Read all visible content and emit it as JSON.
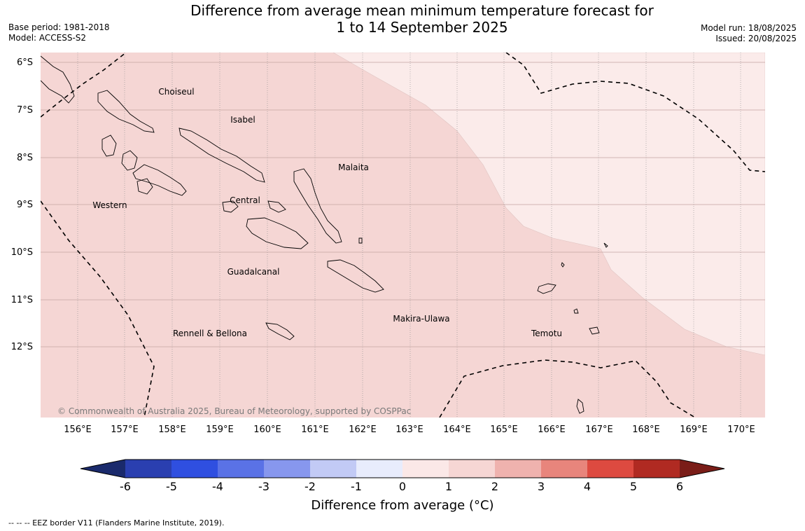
{
  "title_line1": "Difference from average mean minimum temperature forecast for",
  "title_line2": "1 to 14 September 2025",
  "base_period": "Base period: 1981-2018",
  "model": "Model: ACCESS-S2",
  "model_run": "Model run: 18/08/2025",
  "issued": "Issued: 20/08/2025",
  "latitudes": [
    "6°S",
    "7°S",
    "8°S",
    "9°S",
    "10°S",
    "11°S",
    "12°S"
  ],
  "longitudes": [
    "156°E",
    "157°E",
    "158°E",
    "159°E",
    "160°E",
    "161°E",
    "162°E",
    "163°E",
    "164°E",
    "165°E",
    "166°E",
    "167°E",
    "168°E",
    "169°E",
    "170°E"
  ],
  "places": {
    "choiseul": "Choiseul",
    "isabel": "Isabel",
    "malaita": "Malaita",
    "western": "Western",
    "central": "Central",
    "guadalcanal": "Guadalcanal",
    "rennell": "Rennell & Bellona",
    "makira": "Makira-Ulawa",
    "temotu": "Temotu"
  },
  "copyright": "© Commonwealth of Australia 2025, Bureau of Meteorology, supported by COSPPac",
  "colorbar": {
    "ticks": [
      "-6",
      "-5",
      "-4",
      "-3",
      "-2",
      "-1",
      "0",
      "1",
      "2",
      "3",
      "4",
      "5",
      "6"
    ],
    "colors": [
      "#1a2a6c",
      "#2a3fb0",
      "#2f4fe0",
      "#5a72e6",
      "#8797ee",
      "#c2caf5",
      "#e8ecfc",
      "#fbe8e7",
      "#f6d6d4",
      "#efb2ae",
      "#e8857c",
      "#dd4a40",
      "#b02a22",
      "#7a1d18"
    ],
    "label": "Difference from average (°C)"
  },
  "map_colors": {
    "band_1_to_2": "#f5d6d4",
    "band_0_to_1": "#fbebea"
  },
  "footnote": "-- -- -- EEZ border V11 (Flanders Marine Institute, 2019)."
}
